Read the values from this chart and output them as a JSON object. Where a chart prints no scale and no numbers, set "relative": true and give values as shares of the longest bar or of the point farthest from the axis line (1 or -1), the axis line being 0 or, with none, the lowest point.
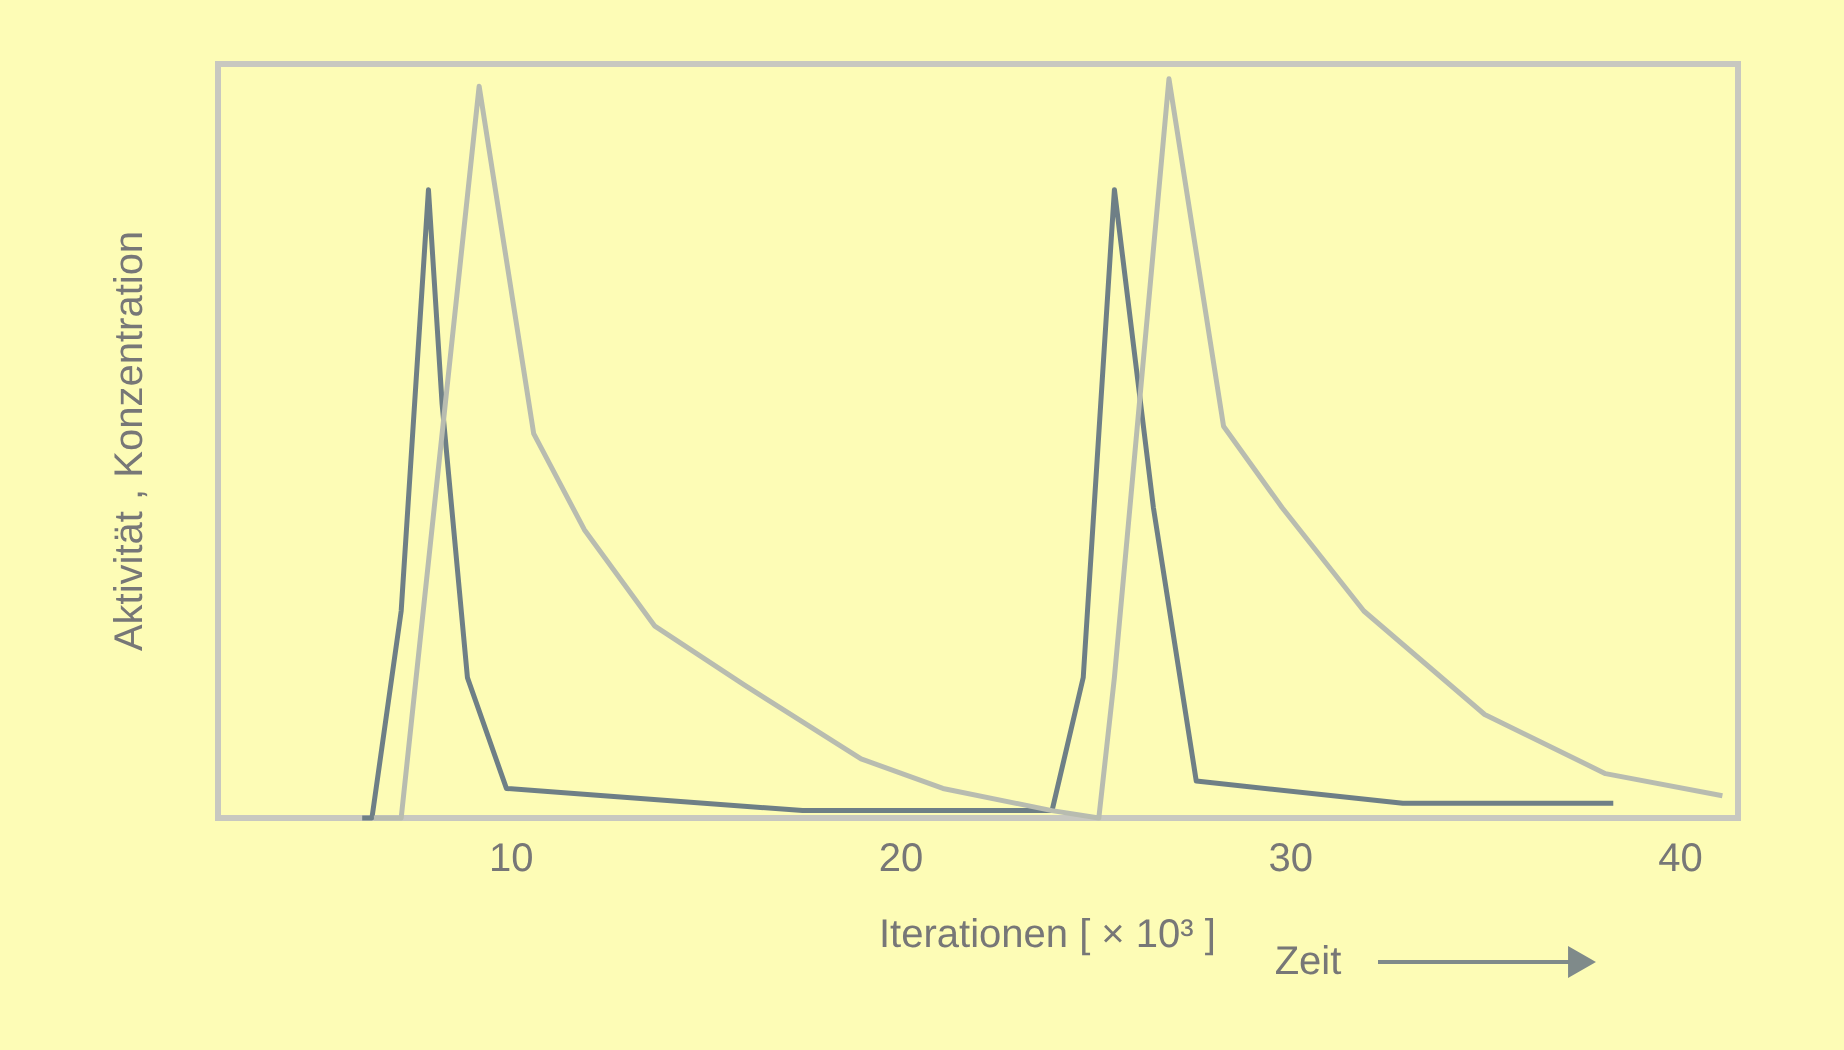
{
  "chart_data": {
    "type": "line",
    "relative": true,
    "xlabel": "Iterationen [ × 10³ ]",
    "ylabel": "Aktivität , Konzentration",
    "annotations": [
      "Zeit"
    ],
    "xlim": [
      2.5,
      41.5
    ],
    "xticks": [
      10,
      20,
      30,
      40
    ],
    "tick_labels": "x",
    "grid": false,
    "legend": false,
    "marker": "none",
    "line_style": "solid",
    "series": [
      {
        "color": "#6e7f86",
        "x": [
          6.2,
          6.45,
          7.2,
          7.9,
          8.25,
          8.9,
          9.9,
          12.4,
          17.5,
          23.9,
          24.7,
          25.5,
          26.5,
          27.6,
          32.9,
          38.3
        ],
        "values": [
          0,
          0,
          0.28,
          0.85,
          0.56,
          0.19,
          0.04,
          0.03,
          0.01,
          0.01,
          0.19,
          0.85,
          0.42,
          0.05,
          0.02,
          0.02
        ]
      },
      {
        "color": "#b8bcb0",
        "x": [
          6.5,
          7.2,
          9.2,
          10.6,
          11.9,
          13.7,
          16,
          19,
          21.1,
          23.9,
          25.1,
          25.5,
          26.9,
          28.3,
          29.8,
          31.9,
          35,
          38.1,
          41.1
        ],
        "values": [
          0,
          0,
          0.99,
          0.52,
          0.39,
          0.26,
          0.18,
          0.08,
          0.04,
          0.01,
          0,
          0.19,
          1.0,
          0.53,
          0.42,
          0.28,
          0.14,
          0.06,
          0.03
        ]
      }
    ]
  }
}
